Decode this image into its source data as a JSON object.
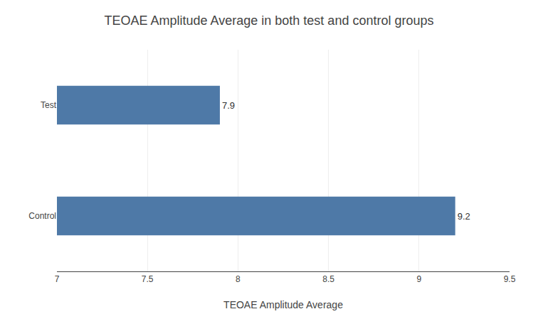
{
  "chart_data": {
    "type": "bar",
    "orientation": "horizontal",
    "title": "TEOAE Amplitude Average in both test and control groups",
    "xlabel": "TEOAE Amplitude Average",
    "categories": [
      "Control",
      "Test"
    ],
    "values": [
      9.2,
      7.9
    ],
    "color": "#4e79a7",
    "xlim": [
      7,
      9.5
    ],
    "xticks": [
      7,
      7.5,
      8,
      8.5,
      9,
      9.5
    ],
    "grid": true,
    "data_labels": true
  }
}
